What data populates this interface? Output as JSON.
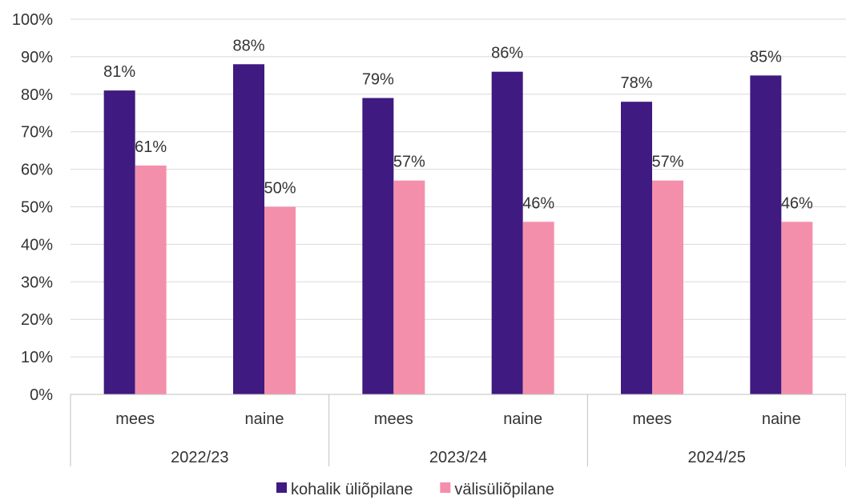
{
  "chart_data": {
    "type": "bar",
    "groups": [
      {
        "label": "2022/23",
        "categories": [
          "mees",
          "naine"
        ]
      },
      {
        "label": "2023/24",
        "categories": [
          "mees",
          "naine"
        ]
      },
      {
        "label": "2024/25",
        "categories": [
          "mees",
          "naine"
        ]
      }
    ],
    "series": [
      {
        "name": "kohalik üliõpilane",
        "color": "#3f1a80",
        "values": [
          81,
          88,
          79,
          86,
          78,
          85
        ],
        "labels": [
          "81%",
          "88%",
          "79%",
          "86%",
          "78%",
          "85%"
        ]
      },
      {
        "name": "välisüliõpilane",
        "color": "#f48fab",
        "values": [
          61,
          50,
          57,
          46,
          57,
          46
        ],
        "labels": [
          "61%",
          "50%",
          "57%",
          "46%",
          "57%",
          "46%"
        ]
      }
    ],
    "y_ticks": [
      "0%",
      "10%",
      "20%",
      "30%",
      "40%",
      "50%",
      "60%",
      "70%",
      "80%",
      "90%",
      "100%"
    ],
    "ylim": [
      0,
      100
    ],
    "grid": true,
    "legend_position": "bottom",
    "title": "",
    "xlabel": "",
    "ylabel": ""
  }
}
